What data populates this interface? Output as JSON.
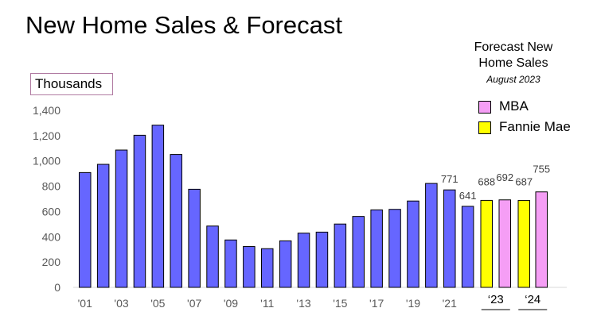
{
  "page": {
    "title": "New Home Sales & Forecast",
    "unit_label": "Thousands"
  },
  "legend": {
    "title_line1": "Forecast New",
    "title_line2": "Home Sales",
    "subtitle": "August 2023",
    "items": [
      {
        "label": "MBA",
        "color": "#f59ef5"
      },
      {
        "label": "Fannie Mae",
        "color": "#ffff00"
      }
    ]
  },
  "chart_data": {
    "type": "bar",
    "title": "New Home Sales & Forecast",
    "ylabel": "Thousands",
    "ylim": [
      0,
      1400
    ],
    "yticks": [
      "0",
      "200",
      "400",
      "600",
      "800",
      "1,000",
      "1,200",
      "1,400"
    ],
    "grid": false,
    "categories": [
      "2001",
      "2002",
      "2003",
      "2004",
      "2005",
      "2006",
      "2007",
      "2008",
      "2009",
      "2010",
      "2011",
      "2012",
      "2013",
      "2014",
      "2015",
      "2016",
      "2017",
      "2018",
      "2019",
      "2020",
      "2021",
      "2022"
    ],
    "x_tick_labels": [
      "'01",
      "'03",
      "'05",
      "'07",
      "'09",
      "'11",
      "'13",
      "'15",
      "'17",
      "'19",
      "'21"
    ],
    "series": [
      {
        "values": [
          908,
          973,
          1086,
          1203,
          1283,
          1051,
          776,
          485,
          375,
          323,
          306,
          368,
          429,
          437,
          501,
          561,
          613,
          617,
          683,
          822,
          771,
          641
        ],
        "color": "#6666ff",
        "data_labels": {
          "20": "771",
          "21": "641"
        }
      }
    ],
    "forecast": {
      "groups": [
        {
          "label": "‘23",
          "bars": [
            {
              "source": "Fannie Mae",
              "value": 688,
              "color": "#ffff00"
            },
            {
              "source": "MBA",
              "value": 692,
              "color": "#f59ef5"
            }
          ]
        },
        {
          "label": "‘24",
          "bars": [
            {
              "source": "Fannie Mae",
              "value": 687,
              "color": "#ffff00"
            },
            {
              "source": "MBA",
              "value": 755,
              "color": "#f59ef5"
            }
          ]
        }
      ]
    },
    "legend_position": "top-right"
  }
}
